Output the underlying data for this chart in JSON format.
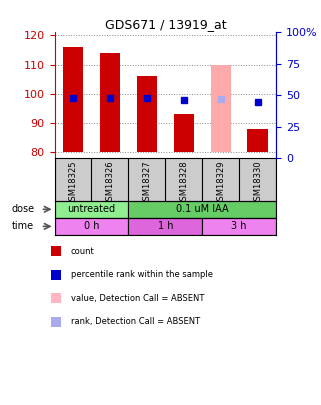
{
  "title": "GDS671 / 13919_at",
  "samples": [
    "GSM18325",
    "GSM18326",
    "GSM18327",
    "GSM18328",
    "GSM18329",
    "GSM18330"
  ],
  "bar_tops": [
    116,
    114,
    106,
    93,
    110,
    88
  ],
  "bar_bottom": 80,
  "bar_colors": [
    "#cc0000",
    "#cc0000",
    "#cc0000",
    "#cc0000",
    "#ffaaaa",
    "#cc0000"
  ],
  "rank_values": [
    48,
    48,
    48,
    46,
    47,
    45
  ],
  "rank_colors": [
    "#0000cc",
    "#0000cc",
    "#0000cc",
    "#0000cc",
    "#aaaaee",
    "#0000cc"
  ],
  "ylim_left": [
    78,
    121
  ],
  "ylim_right": [
    0,
    100
  ],
  "yticks_left": [
    80,
    90,
    100,
    110,
    120
  ],
  "yticks_right": [
    0,
    25,
    50,
    75,
    100
  ],
  "ytick_labels_right": [
    "0",
    "25",
    "50",
    "75",
    "100%"
  ],
  "dose_groups": [
    {
      "label": "untreated",
      "span": [
        0,
        2
      ],
      "color": "#90ee90"
    },
    {
      "label": "0.1 uM IAA",
      "span": [
        2,
        6
      ],
      "color": "#66cc66"
    }
  ],
  "time_groups": [
    {
      "label": "0 h",
      "span": [
        0,
        2
      ],
      "color": "#ee82ee"
    },
    {
      "label": "1 h",
      "span": [
        2,
        4
      ],
      "color": "#dd66dd"
    },
    {
      "label": "3 h",
      "span": [
        4,
        6
      ],
      "color": "#ee82ee"
    }
  ],
  "legend_items": [
    {
      "color": "#cc0000",
      "label": "count"
    },
    {
      "color": "#0000cc",
      "label": "percentile rank within the sample"
    },
    {
      "color": "#ffb6c1",
      "label": "value, Detection Call = ABSENT"
    },
    {
      "color": "#aaaaee",
      "label": "rank, Detection Call = ABSENT"
    }
  ],
  "grid_color": "#888888",
  "left_axis_color": "#cc0000",
  "right_axis_color": "#0000cc",
  "bar_width": 0.55,
  "label_bg_color": "#cccccc",
  "fig_bg_color": "#ffffff"
}
